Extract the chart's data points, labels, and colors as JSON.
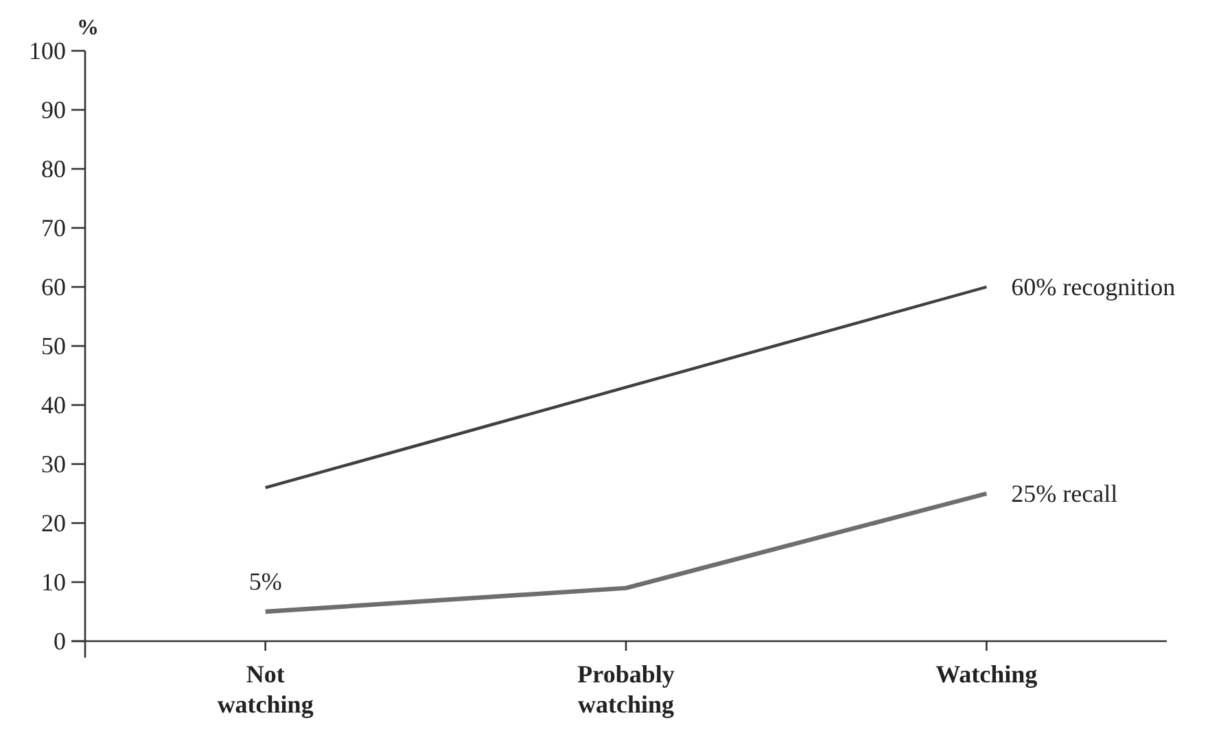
{
  "chart_data": {
    "type": "line",
    "ylabel": "%",
    "categories": [
      "Not\nwatching",
      "Probably\nwatching",
      "Watching"
    ],
    "series": [
      {
        "color": "#404040",
        "values": [
          26,
          43,
          60
        ],
        "value_labels": [
          null,
          null,
          "60% recognition"
        ]
      },
      {
        "color": "#6e6e6e",
        "values": [
          5,
          9,
          25
        ],
        "value_labels": [
          "5%",
          null,
          "25% recall"
        ]
      }
    ],
    "ylim": [
      0,
      100
    ],
    "yticks": [
      0,
      10,
      20,
      30,
      40,
      50,
      60,
      70,
      80,
      90,
      100
    ],
    "grid": false,
    "marker": "none",
    "line_style": "solid"
  }
}
